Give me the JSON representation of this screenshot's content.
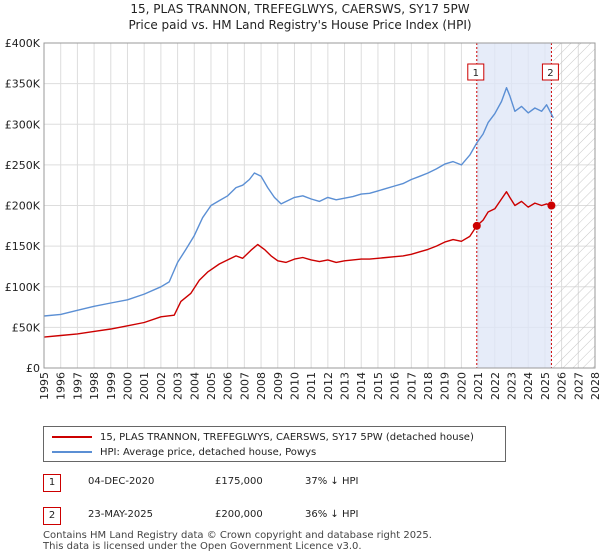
{
  "title_line1": "15, PLAS TRANNON, TREFEGLWYS, CAERSWS, SY17 5PW",
  "title_line2": "Price paid vs. HM Land Registry's House Price Index (HPI)",
  "chart_data": {
    "type": "line",
    "title": "Price paid vs. HM Land Registry's House Price Index (HPI)",
    "xlabel": "",
    "ylabel": "",
    "xlim": [
      1995,
      2028
    ],
    "ylim": [
      0,
      400000
    ],
    "y_ticks": [
      0,
      50000,
      100000,
      150000,
      200000,
      250000,
      300000,
      350000,
      400000
    ],
    "y_tick_labels": [
      "£0",
      "£50K",
      "£100K",
      "£150K",
      "£200K",
      "£250K",
      "£300K",
      "£350K",
      "£400K"
    ],
    "x_ticks": [
      1995,
      1996,
      1997,
      1998,
      1999,
      2000,
      2001,
      2002,
      2003,
      2004,
      2005,
      2006,
      2007,
      2008,
      2009,
      2010,
      2011,
      2012,
      2013,
      2014,
      2015,
      2016,
      2017,
      2018,
      2019,
      2020,
      2021,
      2022,
      2023,
      2024,
      2025,
      2026,
      2027,
      2028
    ],
    "x_tick_labels": [
      "1995",
      "1996",
      "1997",
      "1998",
      "1999",
      "2000",
      "2001",
      "2002",
      "2003",
      "2004",
      "2005",
      "2006",
      "2007",
      "2008",
      "2009",
      "2010",
      "2011",
      "2012",
      "2013",
      "2014",
      "2015",
      "2016",
      "2017",
      "2018",
      "2019",
      "2020",
      "2021",
      "2022",
      "2023",
      "2024",
      "2025",
      "2026",
      "2027",
      "2028"
    ],
    "highlight_span": [
      2020.92,
      2025.39
    ],
    "hatch_from": 2025.5,
    "series": [
      {
        "name": "15, PLAS TRANNON, TREFEGLWYS, CAERSWS, SY17 5PW (detached house)",
        "color": "#cc0000",
        "points": [
          [
            1995.0,
            38000
          ],
          [
            1996.0,
            40000
          ],
          [
            1997.0,
            42000
          ],
          [
            1998.0,
            45000
          ],
          [
            1999.0,
            48000
          ],
          [
            2000.0,
            52000
          ],
          [
            2001.0,
            56000
          ],
          [
            2002.0,
            63000
          ],
          [
            2002.8,
            65000
          ],
          [
            2003.2,
            82000
          ],
          [
            2003.8,
            92000
          ],
          [
            2004.3,
            108000
          ],
          [
            2004.8,
            118000
          ],
          [
            2005.5,
            128000
          ],
          [
            2006.0,
            133000
          ],
          [
            2006.5,
            138000
          ],
          [
            2006.9,
            135000
          ],
          [
            2007.4,
            145000
          ],
          [
            2007.8,
            152000
          ],
          [
            2008.2,
            146000
          ],
          [
            2008.6,
            138000
          ],
          [
            2009.0,
            132000
          ],
          [
            2009.5,
            130000
          ],
          [
            2010.0,
            134000
          ],
          [
            2010.5,
            136000
          ],
          [
            2011.0,
            133000
          ],
          [
            2011.5,
            131000
          ],
          [
            2012.0,
            133000
          ],
          [
            2012.5,
            130000
          ],
          [
            2013.0,
            132000
          ],
          [
            2013.5,
            133000
          ],
          [
            2014.0,
            134000
          ],
          [
            2014.5,
            134000
          ],
          [
            2015.0,
            135000
          ],
          [
            2015.5,
            136000
          ],
          [
            2016.0,
            137000
          ],
          [
            2016.5,
            138000
          ],
          [
            2017.0,
            140000
          ],
          [
            2017.5,
            143000
          ],
          [
            2018.0,
            146000
          ],
          [
            2018.5,
            150000
          ],
          [
            2019.0,
            155000
          ],
          [
            2019.5,
            158000
          ],
          [
            2020.0,
            156000
          ],
          [
            2020.5,
            162000
          ],
          [
            2020.92,
            175000
          ],
          [
            2021.3,
            182000
          ],
          [
            2021.6,
            192000
          ],
          [
            2022.0,
            196000
          ],
          [
            2022.4,
            208000
          ],
          [
            2022.7,
            217000
          ],
          [
            2022.9,
            210000
          ],
          [
            2023.2,
            200000
          ],
          [
            2023.6,
            205000
          ],
          [
            2024.0,
            198000
          ],
          [
            2024.4,
            203000
          ],
          [
            2024.8,
            200000
          ],
          [
            2025.1,
            202000
          ],
          [
            2025.39,
            200000
          ]
        ]
      },
      {
        "name": "HPI: Average price, detached house, Powys",
        "color": "#5b8fd4",
        "points": [
          [
            1995.0,
            64000
          ],
          [
            1996.0,
            66000
          ],
          [
            1997.0,
            71000
          ],
          [
            1998.0,
            76000
          ],
          [
            1999.0,
            80000
          ],
          [
            2000.0,
            84000
          ],
          [
            2001.0,
            91000
          ],
          [
            2002.0,
            100000
          ],
          [
            2002.5,
            106000
          ],
          [
            2003.0,
            130000
          ],
          [
            2003.5,
            146000
          ],
          [
            2004.0,
            163000
          ],
          [
            2004.5,
            185000
          ],
          [
            2005.0,
            200000
          ],
          [
            2005.5,
            206000
          ],
          [
            2006.0,
            212000
          ],
          [
            2006.5,
            222000
          ],
          [
            2006.9,
            225000
          ],
          [
            2007.3,
            232000
          ],
          [
            2007.6,
            240000
          ],
          [
            2008.0,
            236000
          ],
          [
            2008.4,
            222000
          ],
          [
            2008.8,
            210000
          ],
          [
            2009.2,
            202000
          ],
          [
            2009.6,
            206000
          ],
          [
            2010.0,
            210000
          ],
          [
            2010.5,
            212000
          ],
          [
            2011.0,
            208000
          ],
          [
            2011.5,
            205000
          ],
          [
            2012.0,
            210000
          ],
          [
            2012.5,
            207000
          ],
          [
            2013.0,
            209000
          ],
          [
            2013.5,
            211000
          ],
          [
            2014.0,
            214000
          ],
          [
            2014.5,
            215000
          ],
          [
            2015.0,
            218000
          ],
          [
            2015.5,
            221000
          ],
          [
            2016.0,
            224000
          ],
          [
            2016.5,
            227000
          ],
          [
            2017.0,
            232000
          ],
          [
            2017.5,
            236000
          ],
          [
            2018.0,
            240000
          ],
          [
            2018.5,
            245000
          ],
          [
            2019.0,
            251000
          ],
          [
            2019.5,
            254000
          ],
          [
            2020.0,
            250000
          ],
          [
            2020.5,
            262000
          ],
          [
            2020.92,
            277000
          ],
          [
            2021.3,
            288000
          ],
          [
            2021.6,
            302000
          ],
          [
            2022.0,
            313000
          ],
          [
            2022.4,
            328000
          ],
          [
            2022.7,
            345000
          ],
          [
            2022.9,
            335000
          ],
          [
            2023.2,
            316000
          ],
          [
            2023.6,
            322000
          ],
          [
            2024.0,
            314000
          ],
          [
            2024.4,
            320000
          ],
          [
            2024.8,
            316000
          ],
          [
            2025.1,
            324000
          ],
          [
            2025.5,
            308000
          ]
        ]
      }
    ],
    "sales": [
      {
        "marker": "1",
        "x": 2020.92,
        "price": 175000
      },
      {
        "marker": "2",
        "x": 2025.39,
        "price": 200000
      }
    ]
  },
  "legend": {
    "property": "15, PLAS TRANNON, TREFEGLWYS, CAERSWS, SY17 5PW (detached house)",
    "hpi": "HPI: Average price, detached house, Powys"
  },
  "transactions": [
    {
      "marker": "1",
      "date": "04-DEC-2020",
      "price": "£175,000",
      "hpi_diff": "37% ↓ HPI"
    },
    {
      "marker": "2",
      "date": "23-MAY-2025",
      "price": "£200,000",
      "hpi_diff": "36% ↓ HPI"
    }
  ],
  "footer_line1": "Contains HM Land Registry data © Crown copyright and database right 2025.",
  "footer_line2": "This data is licensed under the Open Government Licence v3.0."
}
